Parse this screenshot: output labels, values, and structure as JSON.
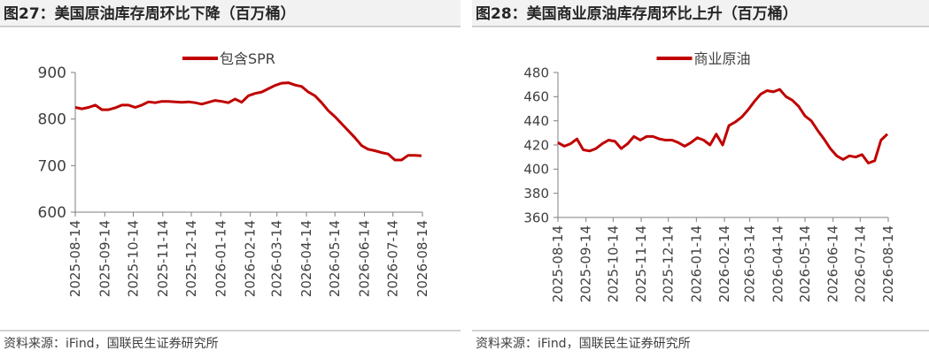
{
  "chart_data": [
    {
      "type": "line",
      "title": "图27：美国原油库存周环比下降（百万桶）",
      "source": "资料来源：iFind，国联民生证券研究所",
      "x": [
        "2025-08-14",
        "2025-08-21",
        "2025-08-28",
        "2025-09-04",
        "2025-09-11",
        "2025-09-18",
        "2025-09-25",
        "2025-10-02",
        "2025-10-09",
        "2025-10-16",
        "2025-10-23",
        "2025-10-30",
        "2025-11-06",
        "2025-11-13",
        "2025-11-20",
        "2025-11-27",
        "2025-12-04",
        "2025-12-11",
        "2025-12-18",
        "2025-12-25",
        "2026-01-01",
        "2026-01-08",
        "2026-01-15",
        "2026-01-22",
        "2026-01-29",
        "2026-02-05",
        "2026-02-12",
        "2026-02-19",
        "2026-02-26",
        "2026-03-05",
        "2026-03-12",
        "2026-03-19",
        "2026-03-26",
        "2026-04-02",
        "2026-04-09",
        "2026-04-16",
        "2026-04-23",
        "2026-04-30",
        "2026-05-07",
        "2026-05-14",
        "2026-05-21",
        "2026-05-28",
        "2026-06-04",
        "2026-06-11",
        "2026-06-18",
        "2026-06-25",
        "2026-07-02",
        "2026-07-09",
        "2026-07-16",
        "2026-07-23",
        "2026-07-30",
        "2026-08-06",
        "2026-08-13"
      ],
      "series": [
        {
          "name": "包含SPR",
          "color": "#c00000",
          "values": [
            825,
            822,
            825,
            830,
            820,
            820,
            824,
            830,
            830,
            825,
            830,
            837,
            835,
            838,
            838,
            837,
            836,
            837,
            835,
            832,
            836,
            840,
            838,
            835,
            843,
            836,
            850,
            855,
            858,
            865,
            872,
            877,
            878,
            873,
            870,
            858,
            850,
            835,
            818,
            805,
            790,
            775,
            760,
            743,
            735,
            732,
            728,
            725,
            712,
            712,
            722,
            722,
            721
          ]
        }
      ],
      "xlim": [
        "2025-08-14",
        "2026-08-14"
      ],
      "xticks": [
        "2025-08-14",
        "2025-09-14",
        "2025-10-14",
        "2025-11-14",
        "2025-12-14",
        "2026-01-14",
        "2026-02-14",
        "2026-03-14",
        "2026-04-14",
        "2026-05-14",
        "2026-06-14",
        "2026-07-14",
        "2026-08-14"
      ],
      "ylim": [
        600,
        900
      ],
      "yticks": [
        600,
        700,
        800,
        900
      ]
    },
    {
      "type": "line",
      "title": "图28：美国商业原油库存周环比上升（百万桶）",
      "source": "资料来源：iFind，国联民生证券研究所",
      "x": [
        "2025-08-14",
        "2025-08-21",
        "2025-08-28",
        "2025-09-04",
        "2025-09-11",
        "2025-09-18",
        "2025-09-25",
        "2025-10-02",
        "2025-10-09",
        "2025-10-16",
        "2025-10-23",
        "2025-10-30",
        "2025-11-06",
        "2025-11-13",
        "2025-11-20",
        "2025-11-27",
        "2025-12-04",
        "2025-12-11",
        "2025-12-18",
        "2025-12-25",
        "2026-01-01",
        "2026-01-08",
        "2026-01-15",
        "2026-01-22",
        "2026-01-29",
        "2026-02-05",
        "2026-02-12",
        "2026-02-19",
        "2026-02-26",
        "2026-03-05",
        "2026-03-12",
        "2026-03-19",
        "2026-03-26",
        "2026-04-02",
        "2026-04-09",
        "2026-04-16",
        "2026-04-23",
        "2026-04-30",
        "2026-05-07",
        "2026-05-14",
        "2026-05-21",
        "2026-05-28",
        "2026-06-04",
        "2026-06-11",
        "2026-06-18",
        "2026-06-25",
        "2026-07-02",
        "2026-07-09",
        "2026-07-16",
        "2026-07-23",
        "2026-07-30",
        "2026-08-06",
        "2026-08-13"
      ],
      "series": [
        {
          "name": "商业原油",
          "color": "#c00000",
          "values": [
            422,
            419,
            421,
            425,
            416,
            415,
            417,
            421,
            424,
            423,
            417,
            421,
            427,
            424,
            427,
            427,
            425,
            424,
            424,
            422,
            419,
            422,
            426,
            424,
            420,
            429,
            420,
            436,
            439,
            443,
            449,
            456,
            462,
            465,
            464,
            466,
            460,
            457,
            452,
            444,
            440,
            432,
            425,
            417,
            411,
            408,
            411,
            410,
            412,
            405,
            407,
            424,
            429
          ]
        }
      ],
      "xlim": [
        "2025-08-14",
        "2026-08-14"
      ],
      "xticks": [
        "2025-08-14",
        "2025-09-14",
        "2025-10-14",
        "2025-11-14",
        "2025-12-14",
        "2026-01-14",
        "2026-02-14",
        "2026-03-14",
        "2026-04-14",
        "2026-05-14",
        "2026-06-14",
        "2026-07-14",
        "2026-08-14"
      ],
      "ylim": [
        360,
        480
      ],
      "yticks": [
        360,
        380,
        400,
        420,
        440,
        460,
        480
      ]
    }
  ]
}
